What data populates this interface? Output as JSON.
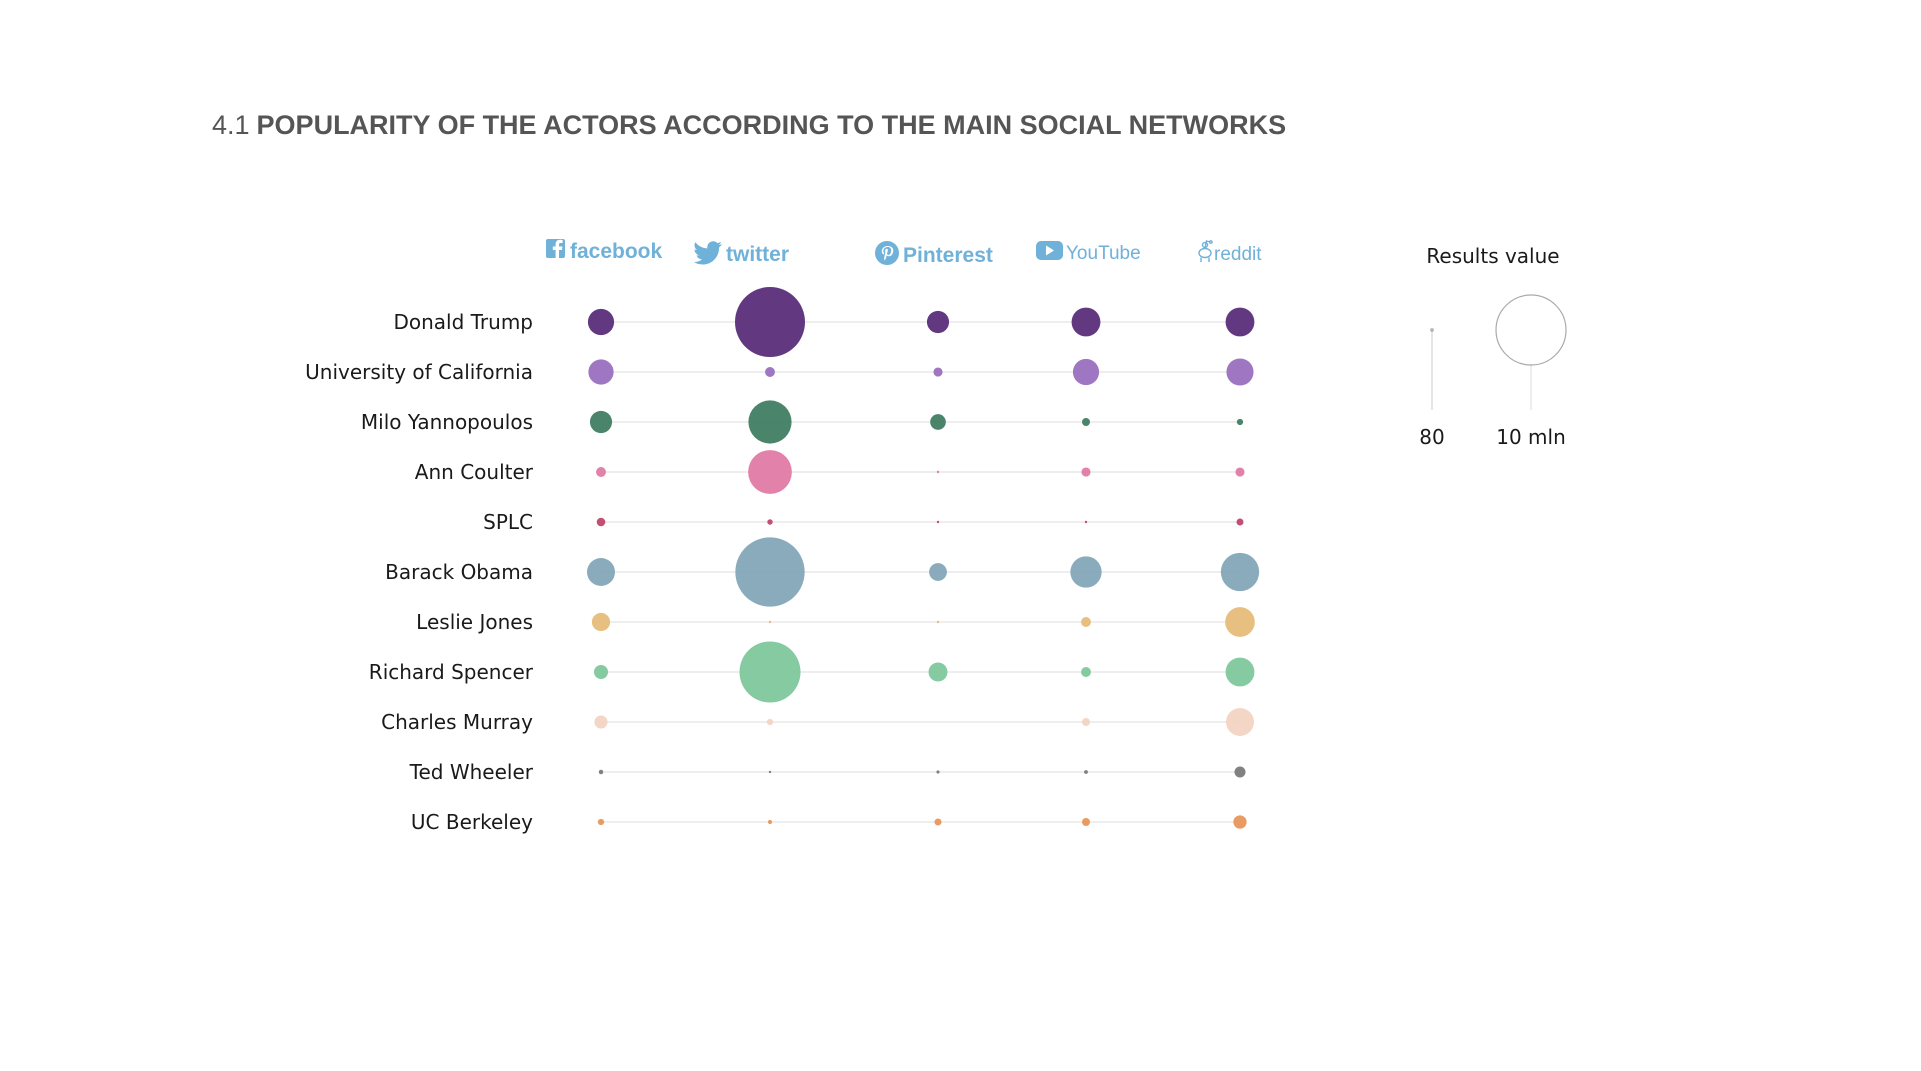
{
  "title": {
    "number": "4.1",
    "text": "POPULARITY OF THE ACTORS ACCORDING TO THE MAIN SOCIAL NETWORKS"
  },
  "networks": [
    {
      "label": "facebook",
      "icon": "facebook-icon"
    },
    {
      "label": "twitter",
      "icon": "twitter-bird-icon"
    },
    {
      "label": "Pinterest",
      "icon": "pinterest-icon"
    },
    {
      "label": "YouTube",
      "icon": "youtube-play-icon"
    },
    {
      "label": "reddit",
      "icon": "reddit-alien-icon"
    }
  ],
  "legend": {
    "title": "Results value",
    "min_label": "80",
    "max_label": "10 mln",
    "min_value": 80,
    "max_value": 10000000
  },
  "chart_data": {
    "type": "bubble-matrix",
    "title": "4.1 POPULARITY OF THE ACTORS ACCORDING TO THE MAIN SOCIAL NETWORKS",
    "categories": [
      "facebook",
      "twitter",
      "Pinterest",
      "YouTube",
      "reddit"
    ],
    "size_legend": {
      "title": "Results value",
      "min": 80,
      "max": 10000000
    },
    "series": [
      {
        "name": "Donald Trump",
        "color": "#5a2d7a",
        "values": [
          1400000,
          10000000,
          1000000,
          1700000,
          1700000
        ]
      },
      {
        "name": "University of California",
        "color": "#9a6fbf",
        "values": [
          1300000,
          200000,
          170000,
          1400000,
          1500000
        ]
      },
      {
        "name": "Milo Yannopoulos",
        "color": "#3f7d63",
        "values": [
          1000000,
          3800000,
          500000,
          130000,
          80000
        ]
      },
      {
        "name": "Ann Coulter",
        "color": "#e07aa4",
        "values": [
          200000,
          3900000,
          500,
          170000,
          170000
        ]
      },
      {
        "name": "SPLC",
        "color": "#c2456b",
        "values": [
          150000,
          60000,
          1500,
          2000,
          100000
        ]
      },
      {
        "name": "Barack Obama",
        "color": "#84a6b8",
        "values": [
          1600000,
          9800000,
          650000,
          2000000,
          3000000
        ]
      },
      {
        "name": "Leslie Jones",
        "color": "#e6bd7a",
        "values": [
          680000,
          1000,
          500,
          200000,
          1800000
        ]
      },
      {
        "name": "Richard Spencer",
        "color": "#7ec79b",
        "values": [
          400000,
          7600000,
          730000,
          200000,
          1700000
        ]
      },
      {
        "name": "Charles Murray",
        "color": "#f2d4c2",
        "values": [
          350000,
          80000,
          0,
          130000,
          1600000
        ]
      },
      {
        "name": "Ted Wheeler",
        "color": "#7a7a7a",
        "values": [
          40000,
          8000,
          20000,
          30000,
          250000
        ]
      },
      {
        "name": "UC Berkeley",
        "color": "#e8965a",
        "values": [
          80000,
          35000,
          100000,
          130000,
          360000
        ]
      }
    ]
  }
}
